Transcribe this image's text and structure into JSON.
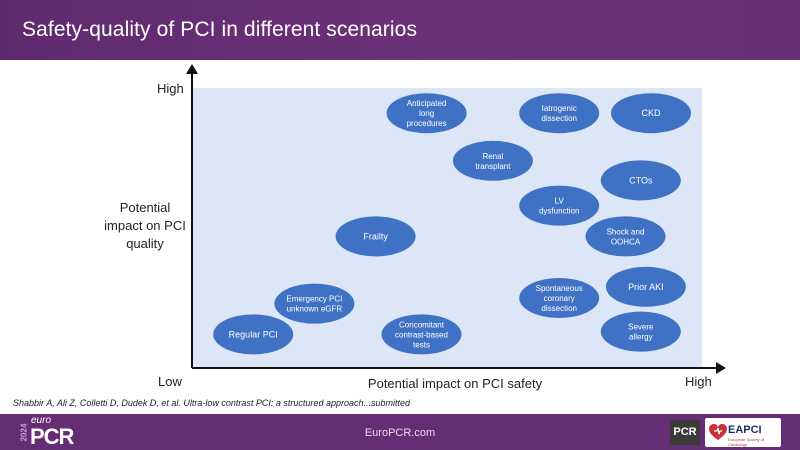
{
  "header": {
    "title": "Safety-quality of PCI in different scenarios"
  },
  "chart_data": {
    "type": "scatter",
    "title": "",
    "xlabel": "Potential impact on PCI safety",
    "ylabel": "Potential impact on PCI quality",
    "x_ticks": {
      "low": "Low",
      "high": "High"
    },
    "y_ticks": {
      "low": "Low",
      "high": "High"
    },
    "xlim": [
      0,
      100
    ],
    "ylim": [
      0,
      100
    ],
    "bubble_color": "#3f72c4",
    "plot_background": "#dce6f6",
    "points": [
      {
        "label": "Regular PCI",
        "x": 12,
        "y": 12
      },
      {
        "label": "Emergency PCI unknown eGFR",
        "x": 24,
        "y": 23
      },
      {
        "label": "Concomitant contrast-based tests",
        "x": 45,
        "y": 12
      },
      {
        "label": "Frailty",
        "x": 36,
        "y": 47
      },
      {
        "label": "Anticipated long procedures",
        "x": 46,
        "y": 91
      },
      {
        "label": "Renal transplant",
        "x": 59,
        "y": 74
      },
      {
        "label": "Iatrogenic dissection",
        "x": 72,
        "y": 91
      },
      {
        "label": "LV dysfunction",
        "x": 72,
        "y": 58
      },
      {
        "label": "Spontaneous coronary dissection",
        "x": 72,
        "y": 25
      },
      {
        "label": "CKD",
        "x": 90,
        "y": 91
      },
      {
        "label": "CTOs",
        "x": 88,
        "y": 67
      },
      {
        "label": "Shock and OOHCA",
        "x": 85,
        "y": 47
      },
      {
        "label": "Prior AKI",
        "x": 89,
        "y": 29
      },
      {
        "label": "Severe allergy",
        "x": 88,
        "y": 13
      }
    ]
  },
  "citation": "Shabbir A, Ali Z, Colletti D, Dudek D, et al. Ultra-low contrast PCI: a structured approach...submitted",
  "footer": {
    "center": "EuroPCR.com",
    "brand_year": "2024",
    "brand_euro": "euro",
    "brand_pcr": "PCR",
    "logo_pcr": "PCR",
    "logo_eapci": "EAPCI",
    "logo_eapci_sub": "European Society of Cardiology"
  },
  "colors": {
    "header": "#6a2f76",
    "footer": "#652d73"
  }
}
